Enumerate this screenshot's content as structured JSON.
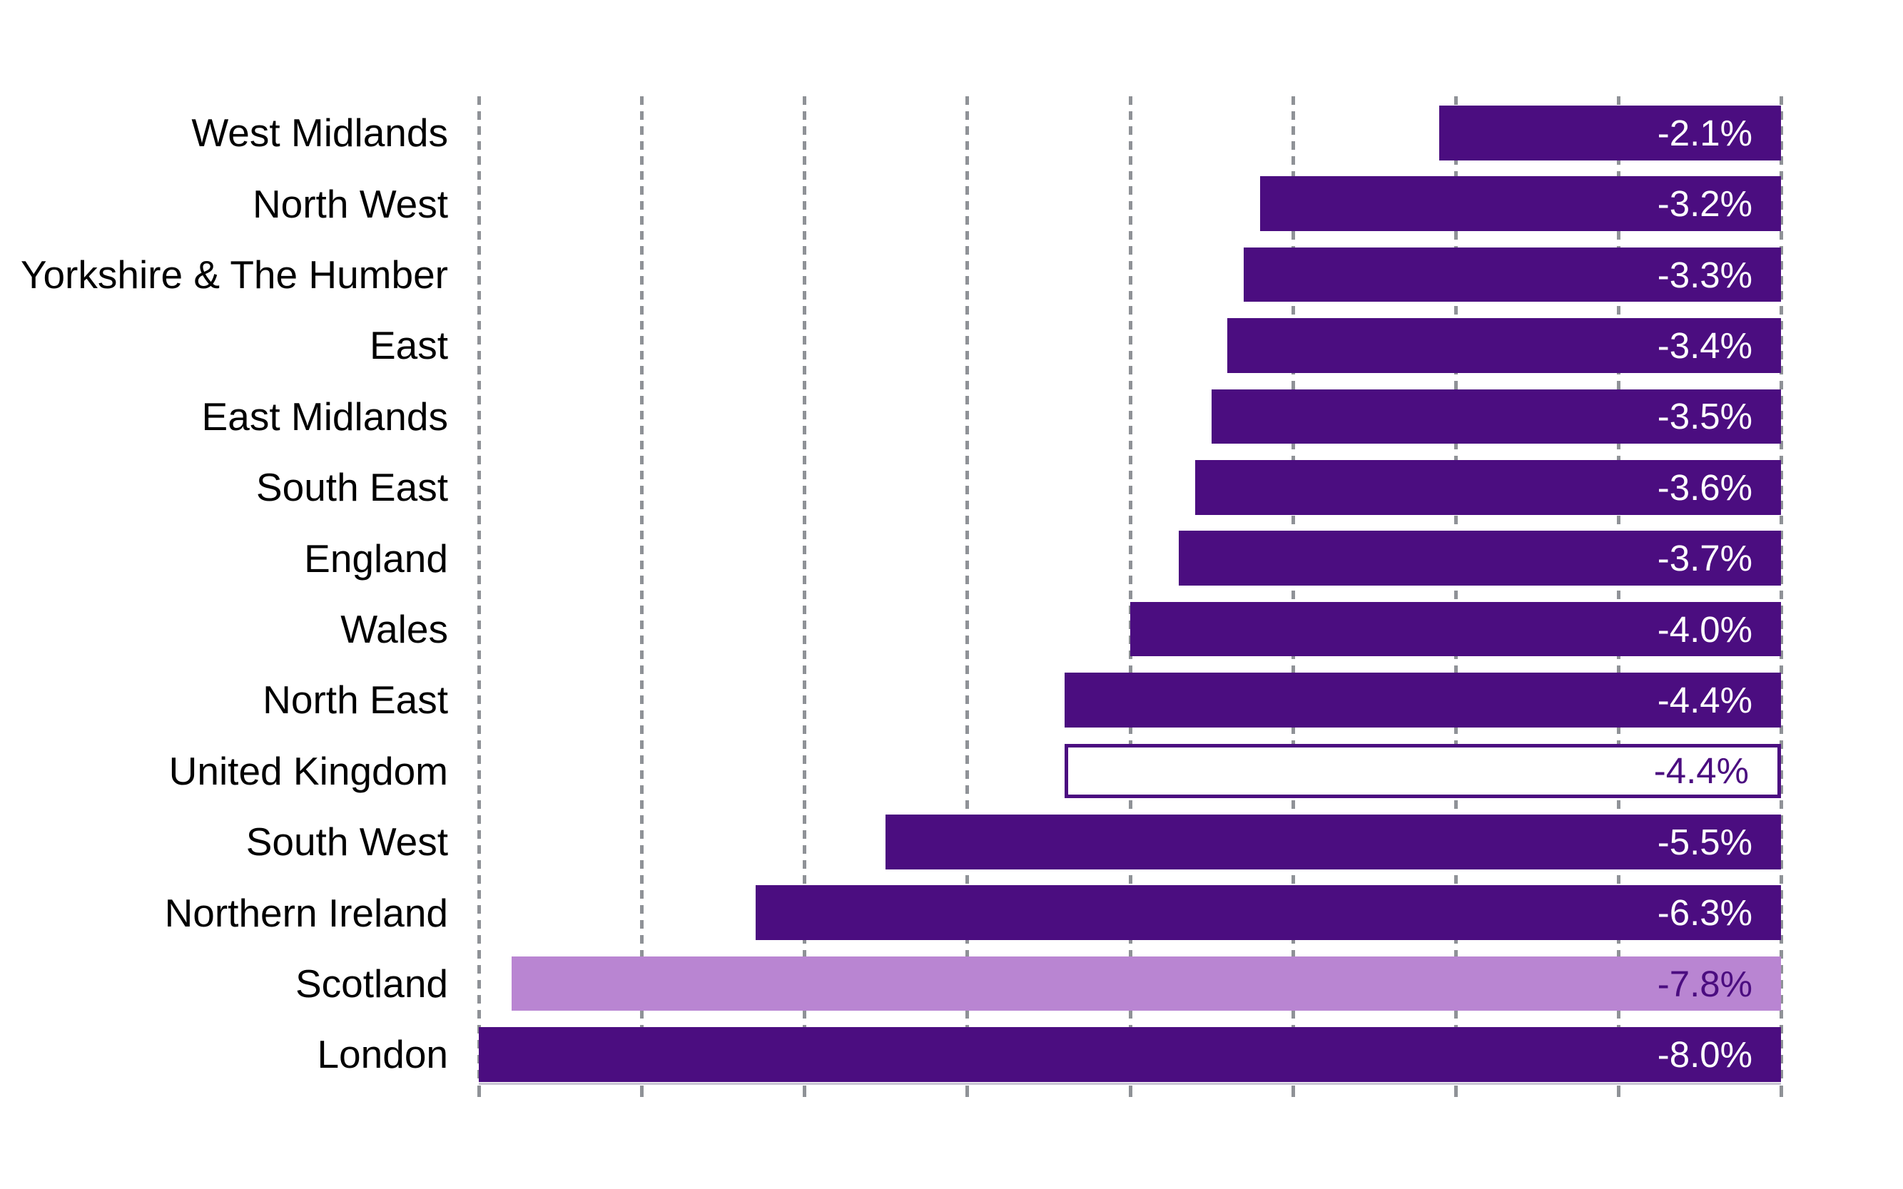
{
  "chart_data": {
    "type": "bar",
    "orientation": "horizontal",
    "title": "",
    "xlabel": "",
    "ylabel": "",
    "legend": "none",
    "grid": "vertical-dashed",
    "xlim": [
      -8,
      0
    ],
    "gridline_step_pct": 1,
    "categories": [
      "West Midlands",
      "North West",
      "Yorkshire & The Humber",
      "East",
      "East Midlands",
      "South East",
      "England",
      "Wales",
      "North East",
      "United Kingdom",
      "South West",
      "Northern Ireland",
      "Scotland",
      "London"
    ],
    "values": [
      -2.1,
      -3.2,
      -3.3,
      -3.4,
      -3.5,
      -3.6,
      -3.7,
      -4.0,
      -4.4,
      -4.4,
      -5.5,
      -6.3,
      -7.8,
      -8.0
    ],
    "value_labels": [
      "-2.1%",
      "-3.2%",
      "-3.3%",
      "-3.4%",
      "-3.5%",
      "-3.6%",
      "-3.7%",
      "-4.0%",
      "-4.4%",
      "-4.4%",
      "-5.5%",
      "-6.3%",
      "-7.8%",
      "-8.0%"
    ],
    "bar_styles": [
      "solid",
      "solid",
      "solid",
      "solid",
      "solid",
      "solid",
      "solid",
      "solid",
      "solid",
      "outline",
      "solid",
      "solid",
      "highlight",
      "solid"
    ],
    "colors": {
      "bar_solid": "#4B0D80",
      "bar_highlight": "#B985D2",
      "bar_outline_fill": "#FFFFFF",
      "bar_outline_border": "#4B0D80",
      "value_text_on_dark": "#FFFFFF",
      "value_text_on_light": "#4B0D80",
      "category_text": "#000000",
      "gridline": "#8F9297",
      "axis_line": "#C8C5D2",
      "background": "#FFFFFF"
    }
  }
}
